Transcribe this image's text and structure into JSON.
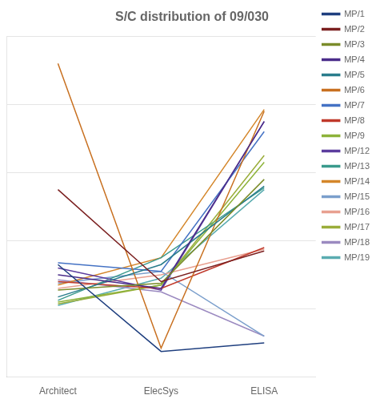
{
  "chart_data": {
    "type": "line",
    "title": "S/C distribution of 09/030",
    "categories": [
      "Architect",
      "ElecSys",
      "ELISA"
    ],
    "series": [
      {
        "name": "MP/1",
        "color": "#1F3F7F",
        "values": [
          3.3,
          0.75,
          1.0
        ]
      },
      {
        "name": "MP/2",
        "color": "#7B2020",
        "values": [
          5.5,
          2.8,
          3.7
        ]
      },
      {
        "name": "MP/3",
        "color": "#7B8C2A",
        "values": [
          2.55,
          2.75,
          5.8
        ]
      },
      {
        "name": "MP/4",
        "color": "#4B2D8A",
        "values": [
          3.0,
          2.6,
          7.5
        ]
      },
      {
        "name": "MP/5",
        "color": "#2A7D8C",
        "values": [
          2.35,
          3.3,
          5.6
        ]
      },
      {
        "name": "MP/6",
        "color": "#C87020",
        "values": [
          9.2,
          0.85,
          7.8
        ]
      },
      {
        "name": "MP/7",
        "color": "#4472C4",
        "values": [
          3.35,
          3.1,
          7.2
        ]
      },
      {
        "name": "MP/8",
        "color": "#C0392B",
        "values": [
          2.8,
          2.6,
          3.8
        ]
      },
      {
        "name": "MP/9",
        "color": "#8DB33A",
        "values": [
          2.2,
          2.7,
          6.3
        ]
      },
      {
        "name": "MP/12",
        "color": "#5C3D9E",
        "values": [
          3.2,
          2.55,
          7.5
        ]
      },
      {
        "name": "MP/13",
        "color": "#3A9A8C",
        "values": [
          2.25,
          3.5,
          5.55
        ]
      },
      {
        "name": "MP/14",
        "color": "#D4862A",
        "values": [
          2.7,
          3.5,
          7.85
        ]
      },
      {
        "name": "MP/15",
        "color": "#7B9FCC",
        "values": [
          2.75,
          3.1,
          1.2
        ]
      },
      {
        "name": "MP/16",
        "color": "#E8A090",
        "values": [
          2.6,
          3.0,
          3.75
        ]
      },
      {
        "name": "MP/17",
        "color": "#9AAD3A",
        "values": [
          2.15,
          2.7,
          6.5
        ]
      },
      {
        "name": "MP/18",
        "color": "#9B8AC0",
        "values": [
          2.85,
          2.5,
          1.2
        ]
      },
      {
        "name": "MP/19",
        "color": "#5AACB0",
        "values": [
          2.1,
          2.9,
          5.5
        ]
      }
    ],
    "ylim": [
      0,
      10
    ],
    "yticks": [
      2,
      4,
      6,
      8,
      10
    ],
    "grid": true,
    "tick_labels": "x",
    "legend": "right"
  }
}
